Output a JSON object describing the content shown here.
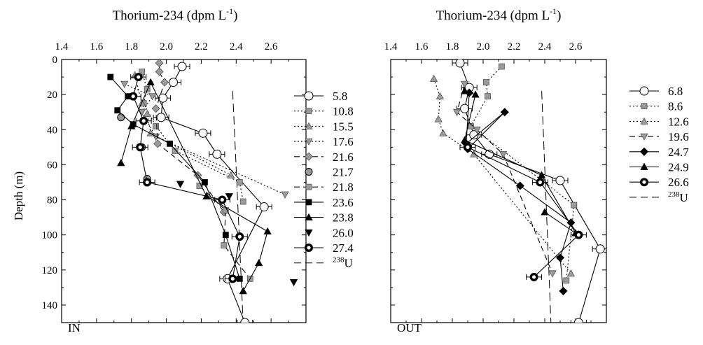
{
  "chart_data": [
    {
      "type": "line",
      "title": "Thorium-234 (dpm L",
      "title_sup": "-1",
      "title_end": ")",
      "ylabel": "Depth (m)",
      "panel_label": "IN",
      "xlim": [
        1.4,
        2.8
      ],
      "ylim": [
        0,
        150
      ],
      "x_ticks": [
        "1.4",
        "1.6",
        "1.8",
        "2.0",
        "2.2",
        "2.4",
        "2.6"
      ],
      "y_ticks": [
        "0",
        "20",
        "40",
        "60",
        "80",
        "100",
        "120",
        "140"
      ],
      "uranium": {
        "label": "U",
        "label_sup": "238",
        "x": [
          2.38,
          2.44
        ],
        "y": [
          18,
          150
        ]
      },
      "series": [
        {
          "name": "5.8",
          "marker": "circle-open",
          "dash": "solid",
          "x": [
            2.09,
            2.04,
            1.98,
            1.97,
            2.21,
            2.29,
            2.56,
            2.35,
            2.45
          ],
          "y": [
            4,
            13,
            22,
            33,
            42,
            54,
            84,
            125,
            150
          ]
        },
        {
          "name": "10.8",
          "marker": "square-gray",
          "dash": "dotted",
          "x": [
            1.86,
            1.89,
            1.87,
            1.94,
            2.05,
            2.42,
            2.44
          ],
          "y": [
            7,
            17,
            25,
            38,
            52,
            70,
            81
          ]
        },
        {
          "name": "15.5",
          "marker": "triangle-gray",
          "dash": "dotted",
          "x": [
            1.82,
            1.86,
            1.89,
            1.91,
            2.37
          ],
          "y": [
            9,
            25,
            31,
            42,
            66
          ]
        },
        {
          "name": "17.6",
          "marker": "triangle-down-gray",
          "dash": "dotted",
          "x": [
            1.76,
            1.92,
            1.86,
            1.94,
            2.68
          ],
          "y": [
            14,
            21,
            30,
            44,
            77
          ]
        },
        {
          "name": "21.6",
          "marker": "diamond-gray",
          "dash": "dashed",
          "x": [
            1.96,
            1.96,
            1.99,
            1.94,
            1.95,
            2.18,
            2.33
          ],
          "y": [
            2,
            7,
            13,
            28,
            48,
            66,
            87
          ]
        },
        {
          "name": "21.7",
          "marker": "circle-gray",
          "dash": "none",
          "x": [
            1.74,
            1.86,
            1.89
          ],
          "y": [
            33,
            50,
            68
          ]
        },
        {
          "name": "21.8",
          "marker": "square-gray",
          "dash": "dashed",
          "x": [
            2.19,
            2.34,
            2.33,
            2.48
          ],
          "y": [
            72,
            86,
            106,
            125
          ]
        },
        {
          "name": "23.6",
          "marker": "square-black",
          "dash": "solid",
          "x": [
            1.68,
            1.78,
            1.72,
            1.81,
            2.02,
            2.22,
            2.34,
            2.42
          ],
          "y": [
            10,
            21,
            29,
            37,
            48,
            70,
            100,
            125
          ]
        },
        {
          "name": "23.8",
          "marker": "triangle-black",
          "dash": "solid",
          "x": [
            1.74,
            1.8,
            1.91,
            2.23,
            2.58,
            2.53,
            2.44
          ],
          "y": [
            59,
            38,
            13,
            78,
            98,
            116,
            132
          ]
        },
        {
          "name": "26.0",
          "marker": "triangle-down-black",
          "dash": "none",
          "x": [
            2.08,
            2.36,
            2.73
          ],
          "y": [
            71,
            78,
            127
          ]
        },
        {
          "name": "27.4",
          "marker": "circle-bullseye",
          "dash": "solid",
          "x": [
            1.84,
            1.81,
            1.87,
            1.85,
            1.89,
            2.32,
            2.42,
            2.38
          ],
          "y": [
            10,
            21,
            35,
            50,
            70,
            80,
            101,
            125
          ]
        }
      ]
    },
    {
      "type": "line",
      "title": "Thorium-234 (dpm L",
      "title_sup": "-1",
      "title_end": ")",
      "ylabel": "",
      "panel_label": "OUT",
      "xlim": [
        1.4,
        2.8
      ],
      "ylim": [
        0,
        150
      ],
      "x_ticks": [
        "1.4",
        "1.6",
        "1.8",
        "2.0",
        "2.2",
        "2.4",
        "2.6"
      ],
      "y_ticks": [],
      "uranium": {
        "label": "U",
        "label_sup": "238",
        "x": [
          2.38,
          2.44
        ],
        "y": [
          18,
          150
        ]
      },
      "series": [
        {
          "name": "6.8",
          "marker": "circle-open",
          "dash": "solid",
          "x": [
            1.85,
            1.91,
            1.88,
            1.94,
            2.04,
            2.5,
            2.76,
            2.62
          ],
          "y": [
            2,
            16,
            28,
            43,
            54,
            69,
            108,
            150
          ]
        },
        {
          "name": "8.6",
          "marker": "square-gray",
          "dash": "dotted",
          "x": [
            2.12,
            2.02,
            2.03,
            1.92,
            2.59,
            2.54
          ],
          "y": [
            4,
            13,
            21,
            38,
            83,
            126
          ]
        },
        {
          "name": "12.6",
          "marker": "triangle-gray",
          "dash": "dotted",
          "x": [
            1.68,
            1.72,
            1.71,
            1.74,
            1.94,
            2.57
          ],
          "y": [
            11,
            21,
            34,
            42,
            54,
            122
          ]
        },
        {
          "name": "19.6",
          "marker": "triangle-down-gray",
          "dash": "dashed",
          "x": [
            1.88,
            1.83,
            1.96,
            2.13,
            2.45
          ],
          "y": [
            14,
            30,
            40,
            54,
            122
          ]
        },
        {
          "name": "24.7",
          "marker": "diamond-black",
          "dash": "solid",
          "x": [
            1.91,
            1.89,
            2.14,
            1.9,
            2.24,
            2.57,
            2.5,
            2.52
          ],
          "y": [
            19,
            48,
            30,
            51,
            72,
            93,
            113,
            132
          ]
        },
        {
          "name": "24.9",
          "marker": "triangle-black",
          "dash": "solid",
          "x": [
            1.88,
            1.95,
            1.88,
            2.38,
            2.6,
            2.4
          ],
          "y": [
            18,
            20,
            46,
            66,
            99,
            87
          ]
        },
        {
          "name": "26.6",
          "marker": "circle-bullseye",
          "dash": "solid",
          "x": [
            1.9,
            2.37,
            2.62,
            2.33
          ],
          "y": [
            50,
            70,
            100,
            124
          ]
        }
      ]
    }
  ]
}
